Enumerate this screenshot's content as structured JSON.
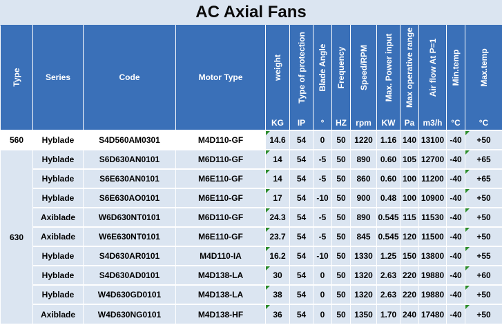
{
  "title": "AC Axial Fans",
  "headers": {
    "type": "Type",
    "series": "Series",
    "code": "Code",
    "motor_type": "Motor Type",
    "weight": "weight",
    "protection": "Type of protection",
    "blade_angle": "Blade Angle",
    "frequency": "Frequency",
    "speed": "Speed/RPM",
    "power": "Max. Power input",
    "operative_range": "Max operative range",
    "air_flow": "Air flow At P=1",
    "min_temp": "Min.temp",
    "max_temp": "Max.temp"
  },
  "units": {
    "weight": "KG",
    "protection": "IP",
    "blade_angle": "°",
    "frequency": "HZ",
    "speed": "rpm",
    "power": "KW",
    "operative_range": "Pa",
    "air_flow": "m3/h",
    "min_temp": "°C",
    "max_temp": "°C"
  },
  "type_groups": [
    "560",
    "630"
  ],
  "rows": [
    {
      "series": "Hyblade",
      "code": "S4D560AM0301",
      "motor": "M4D110-GF",
      "weight": "14.6",
      "ip": "54",
      "angle": "0",
      "hz": "50",
      "rpm": "1220",
      "kw": "1.16",
      "pa": "140",
      "flow": "13100",
      "tmin": "-40",
      "tmax": "+50"
    },
    {
      "series": "Hyblade",
      "code": "S6D630AN0101",
      "motor": "M6D110-GF",
      "weight": "14",
      "ip": "54",
      "angle": "-5",
      "hz": "50",
      "rpm": "890",
      "kw": "0.60",
      "pa": "105",
      "flow": "12700",
      "tmin": "-40",
      "tmax": "+65"
    },
    {
      "series": "Hyblade",
      "code": "S6E630AN0101",
      "motor": "M6E110-GF",
      "weight": "14",
      "ip": "54",
      "angle": "-5",
      "hz": "50",
      "rpm": "860",
      "kw": "0.60",
      "pa": "100",
      "flow": "11200",
      "tmin": "-40",
      "tmax": "+65"
    },
    {
      "series": "Hyblade",
      "code": "S6E630AO0101",
      "motor": "M6E110-GF",
      "weight": "17",
      "ip": "54",
      "angle": "-10",
      "hz": "50",
      "rpm": "900",
      "kw": "0.48",
      "pa": "100",
      "flow": "10900",
      "tmin": "-40",
      "tmax": "+50"
    },
    {
      "series": "Axiblade",
      "code": "W6D630NT0101",
      "motor": "M6D110-GF",
      "weight": "24.3",
      "ip": "54",
      "angle": "-5",
      "hz": "50",
      "rpm": "890",
      "kw": "0.545",
      "pa": "115",
      "flow": "11530",
      "tmin": "-40",
      "tmax": "+50"
    },
    {
      "series": "Axiblade",
      "code": "W6E630NT0101",
      "motor": "M6E110-GF",
      "weight": "23.7",
      "ip": "54",
      "angle": "-5",
      "hz": "50",
      "rpm": "845",
      "kw": "0.545",
      "pa": "120",
      "flow": "11500",
      "tmin": "-40",
      "tmax": "+50"
    },
    {
      "series": "Hyblade",
      "code": "S4D630AR0101",
      "motor": "M4D110-IA",
      "weight": "16.2",
      "ip": "54",
      "angle": "-10",
      "hz": "50",
      "rpm": "1330",
      "kw": "1.25",
      "pa": "150",
      "flow": "13800",
      "tmin": "-40",
      "tmax": "+55"
    },
    {
      "series": "Hyblade",
      "code": "S4D630AD0101",
      "motor": "M4D138-LA",
      "weight": "30",
      "ip": "54",
      "angle": "0",
      "hz": "50",
      "rpm": "1320",
      "kw": "2.63",
      "pa": "220",
      "flow": "19880",
      "tmin": "-40",
      "tmax": "+60"
    },
    {
      "series": "Hyblade",
      "code": "W4D630GD0101",
      "motor": "M4D138-LA",
      "weight": "38",
      "ip": "54",
      "angle": "0",
      "hz": "50",
      "rpm": "1320",
      "kw": "2.63",
      "pa": "220",
      "flow": "19880",
      "tmin": "-40",
      "tmax": "+50"
    },
    {
      "series": "Axiblade",
      "code": "W4D630NG0101",
      "motor": "M4D138-HF",
      "weight": "36",
      "ip": "54",
      "angle": "0",
      "hz": "50",
      "rpm": "1350",
      "kw": "1.70",
      "pa": "240",
      "flow": "17480",
      "tmin": "-40",
      "tmax": "+50"
    }
  ]
}
